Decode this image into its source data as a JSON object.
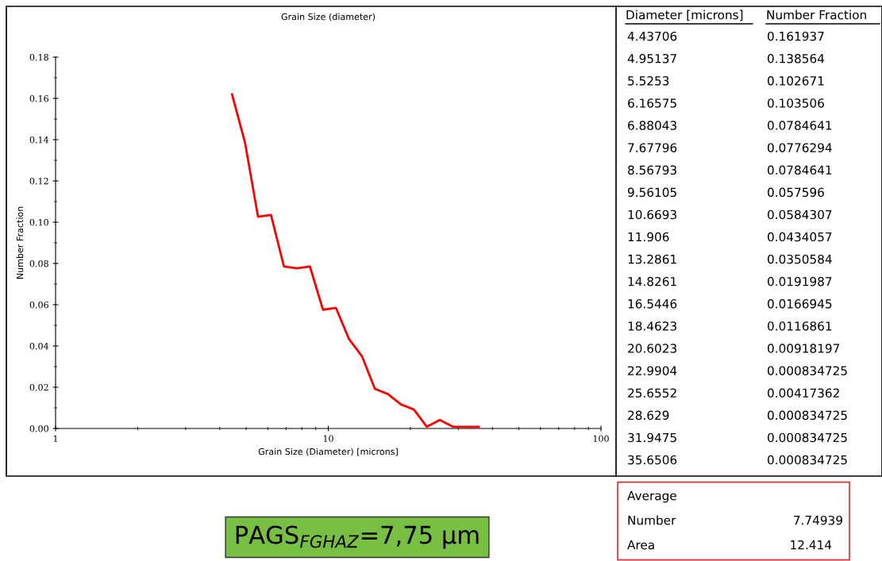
{
  "chart_data": {
    "type": "line",
    "title": "Grain Size (diameter)",
    "xlabel": "Grain Size (Diameter) [microns]",
    "ylabel": "Number Fraction",
    "x": [
      4.43706,
      4.95137,
      5.5253,
      6.16575,
      6.88043,
      7.67796,
      8.56793,
      9.56105,
      10.6693,
      11.906,
      13.2861,
      14.8261,
      16.5446,
      18.4623,
      20.6023,
      22.9904,
      25.6552,
      28.629,
      31.9475,
      35.6506
    ],
    "series": [
      {
        "color": "#ff0000",
        "values": [
          0.161937,
          0.138564,
          0.102671,
          0.103506,
          0.0784641,
          0.0776294,
          0.0784641,
          0.057596,
          0.0584307,
          0.0434057,
          0.0350584,
          0.0191987,
          0.0166945,
          0.0116861,
          0.00918197,
          0.000834725,
          0.00417362,
          0.000834725,
          0.000834725,
          0.000834725
        ]
      }
    ],
    "log": "x",
    "xlim": [
      1,
      100
    ],
    "xticks": [
      1,
      10,
      100
    ],
    "ylim": [
      0,
      0.18
    ],
    "yticks": [
      {
        "value": 0,
        "label": "0.00"
      },
      0.02,
      0.04,
      0.06,
      0.08,
      {
        "value": 0.1,
        "label": "0.10"
      },
      0.12,
      0.14,
      0.16,
      0.18
    ],
    "grid": false,
    "legend": false,
    "marker": "none",
    "line_style": "solid",
    "annotations": [
      "Diameter [microns]",
      "Number Fraction",
      "4.43706",
      "0.161937",
      "4.95137",
      "0.138564",
      "5.5253",
      "0.102671",
      "6.16575",
      "0.103506",
      "6.88043",
      "0.0784641",
      "7.67796",
      "0.0776294",
      "8.56793",
      "0.0784641",
      "9.56105",
      "0.057596",
      "10.6693",
      "0.0584307",
      "11.906",
      "0.0434057",
      "13.2861",
      "0.0350584",
      "14.8261",
      "0.0191987",
      "16.5446",
      "0.0166945",
      "18.4623",
      "0.0116861",
      "20.6023",
      "0.00918197",
      "22.9904",
      "0.000834725",
      "25.6552",
      "0.00417362",
      "28.629",
      "0.000834725",
      "31.9475",
      "0.000834725",
      "35.6506",
      "0.000834725",
      "Average",
      "Number",
      "7.74939",
      "Area",
      "12.414",
      "PAGS$_{FGHAZ}$=7,75 µm"
    ]
  }
}
